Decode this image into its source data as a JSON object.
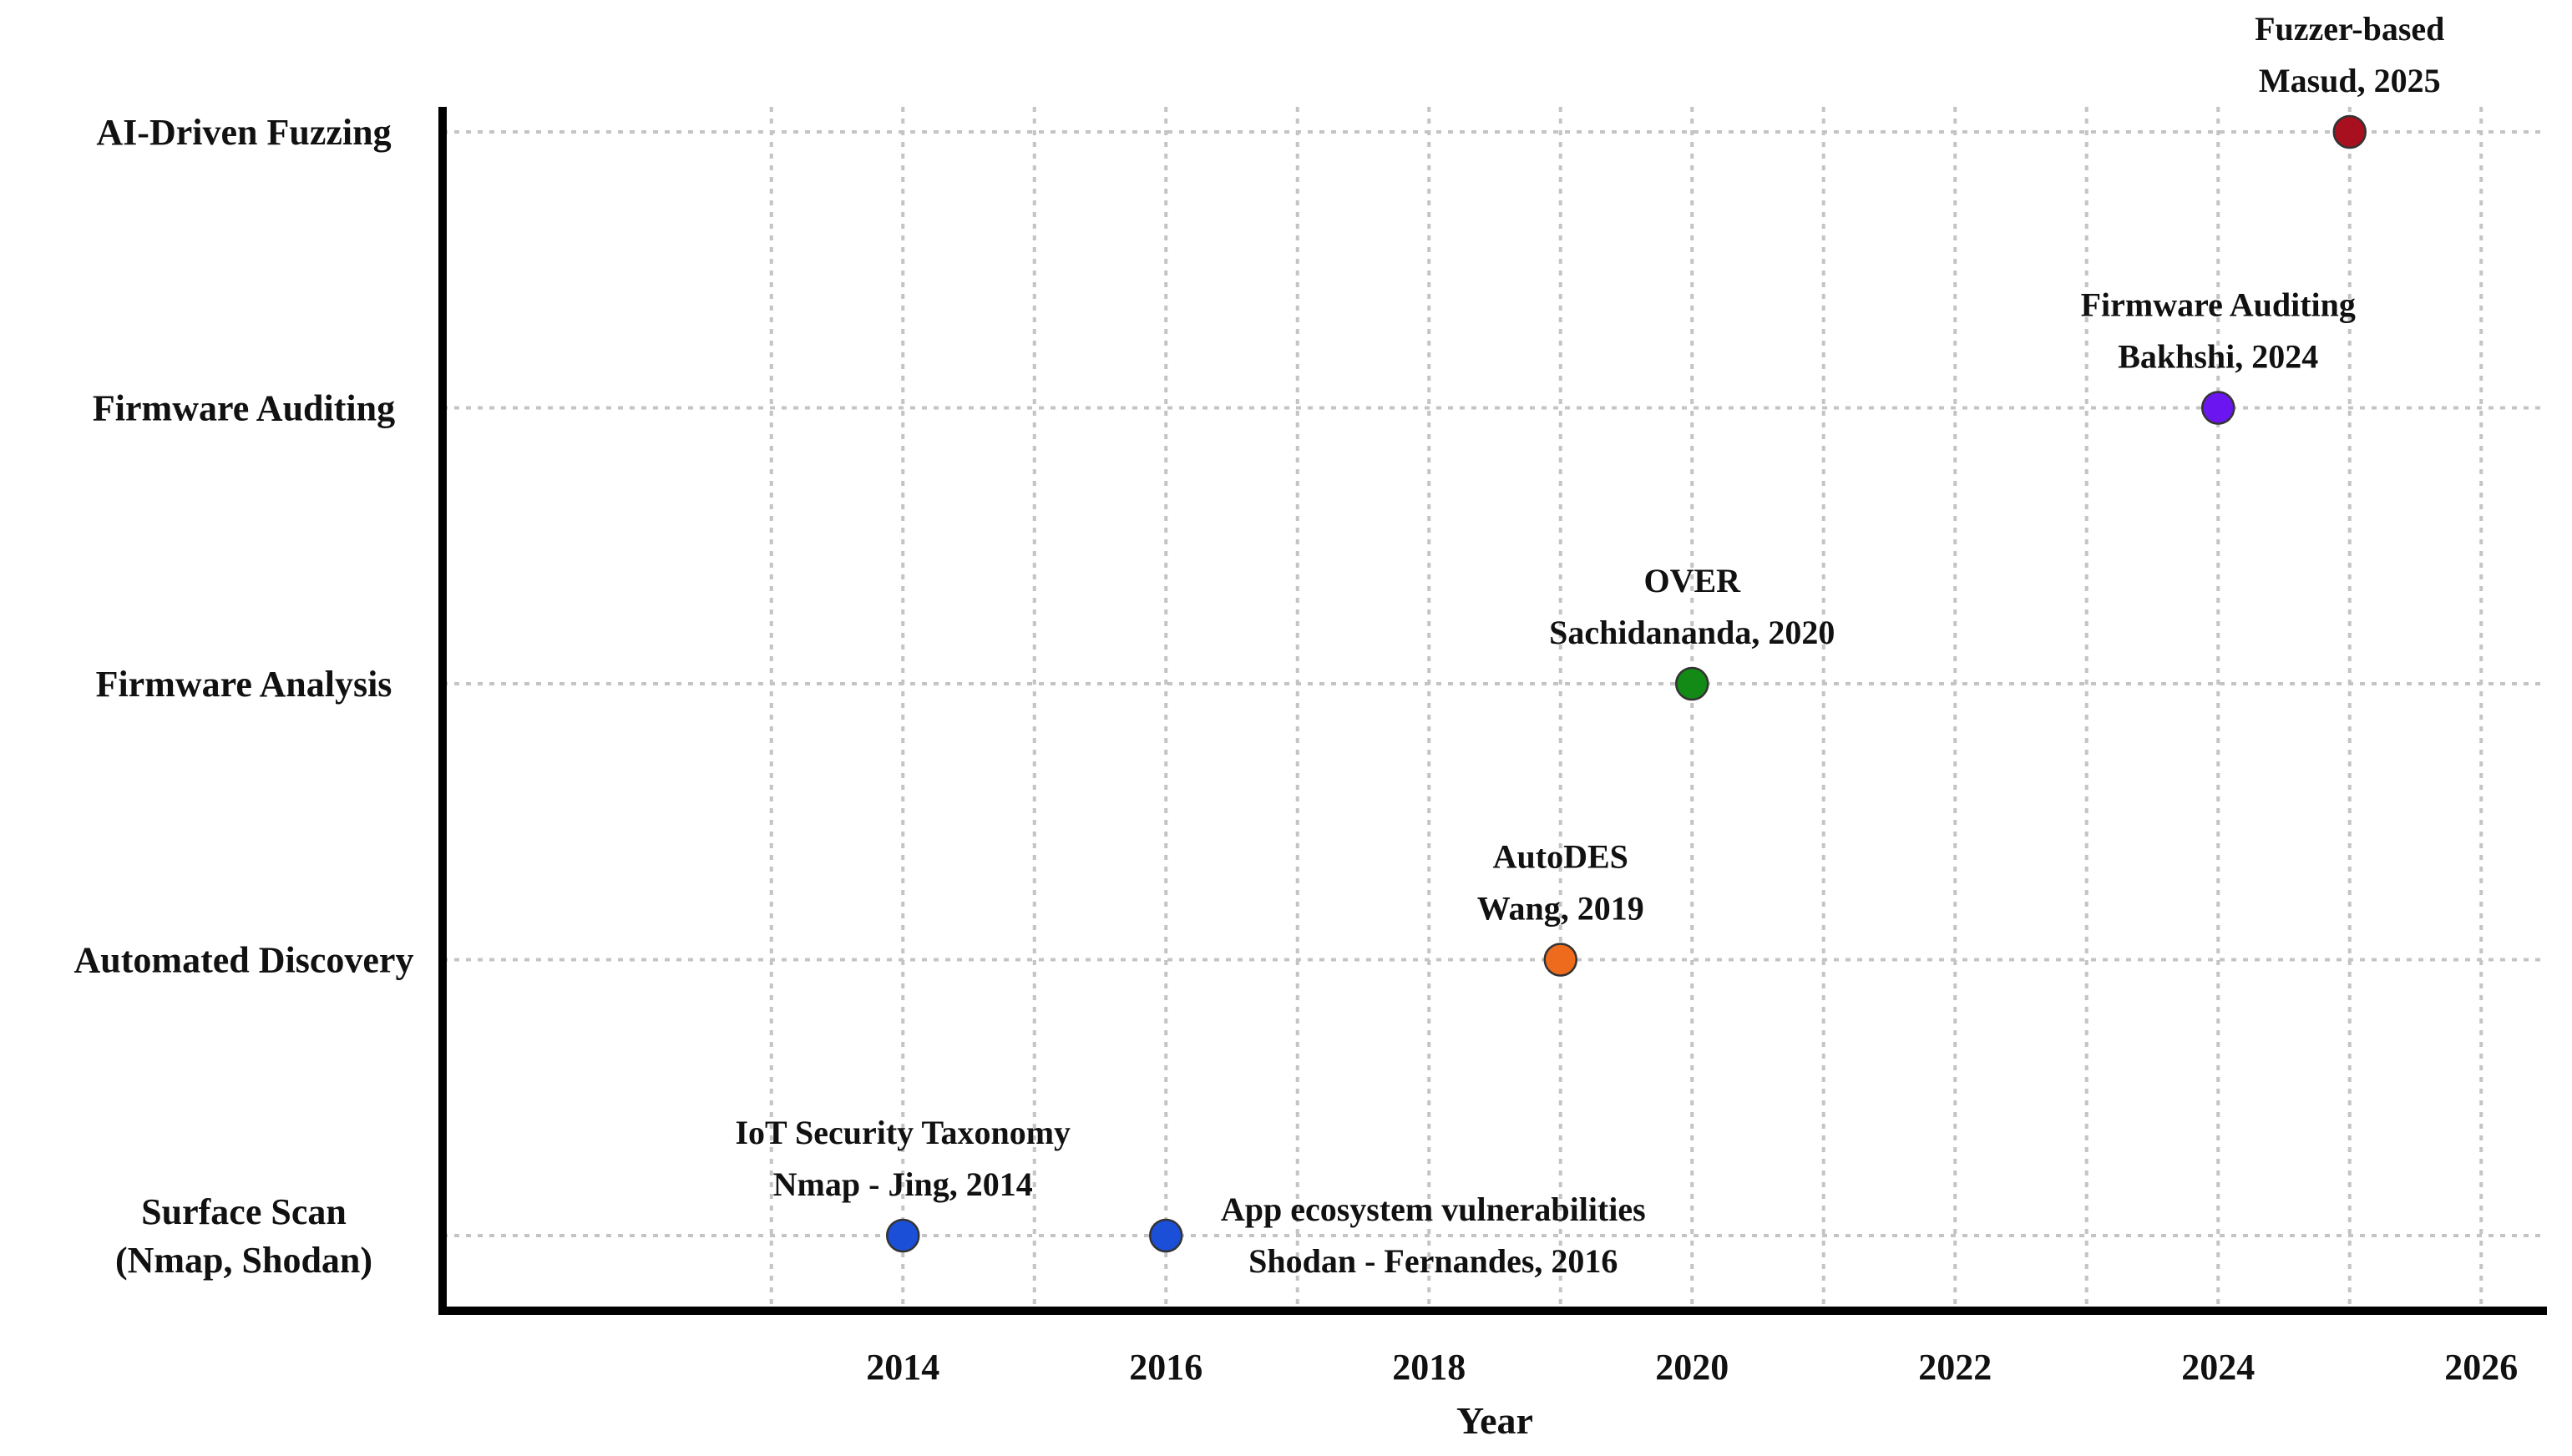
{
  "chart_data": {
    "type": "scatter",
    "title": "",
    "xlabel": "Year",
    "ylabel": "",
    "xlim": [
      2010.5,
      2026.5
    ],
    "grid": true,
    "x_ticks": [
      2014,
      2016,
      2018,
      2020,
      2022,
      2024,
      2026
    ],
    "categories": [
      [
        "Surface Scan",
        "(Nmap, Shodan)"
      ],
      [
        "Automated Discovery"
      ],
      [
        "Firmware Analysis"
      ],
      [
        "Firmware Auditing"
      ],
      [
        "AI-Driven Fuzzing"
      ]
    ],
    "points": [
      {
        "x": 2014,
        "category": 0,
        "color": "#1b4fd8",
        "label": [
          "IoT Security Taxonomy",
          "Nmap - Jing, 2014"
        ],
        "label_position": "above"
      },
      {
        "x": 2016,
        "category": 0,
        "color": "#1b4fd8",
        "label": [
          "App ecosystem vulnerabilities",
          "Shodan - Fernandes, 2016"
        ],
        "label_position": "right"
      },
      {
        "x": 2019,
        "category": 1,
        "color": "#ee6a1c",
        "label": [
          "AutoDES",
          "Wang, 2019"
        ],
        "label_position": "above"
      },
      {
        "x": 2020,
        "category": 2,
        "color": "#138a15",
        "label": [
          "OVER",
          "Sachidananda, 2020"
        ],
        "label_position": "above"
      },
      {
        "x": 2024,
        "category": 3,
        "color": "#6b16f0",
        "label": [
          "Firmware Auditing",
          "Bakhshi, 2024"
        ],
        "label_position": "above"
      },
      {
        "x": 2025,
        "category": 4,
        "color": "#a8101f",
        "label": [
          "Fuzzer-based",
          "Masud, 2025"
        ],
        "label_position": "above"
      }
    ]
  }
}
